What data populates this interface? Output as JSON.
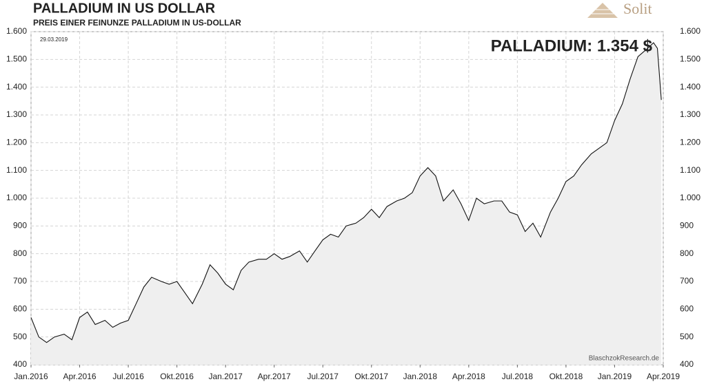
{
  "chart_data": {
    "type": "area",
    "title": "PALLADIUM  IN  US DOLLAR",
    "subtitle": "PREIS EINER FEINUNZE PALLADIUM IN US-DOLLAR",
    "date_note": "29.03.2019",
    "annotation": "PALLADIUM: 1.354 $",
    "source": "BlaschzokResearch.de",
    "logo": "Solit",
    "color": "#111111",
    "fill": "#efefef",
    "grid": true,
    "x": [
      2016.0,
      2016.04,
      2016.08,
      2016.12,
      2016.17,
      2016.21,
      2016.25,
      2016.29,
      2016.33,
      2016.38,
      2016.42,
      2016.46,
      2016.5,
      2016.54,
      2016.58,
      2016.62,
      2016.67,
      2016.71,
      2016.75,
      2016.79,
      2016.83,
      2016.88,
      2016.92,
      2016.96,
      2017.0,
      2017.04,
      2017.08,
      2017.12,
      2017.17,
      2017.21,
      2017.25,
      2017.29,
      2017.33,
      2017.38,
      2017.42,
      2017.46,
      2017.5,
      2017.54,
      2017.58,
      2017.62,
      2017.67,
      2017.71,
      2017.75,
      2017.79,
      2017.83,
      2017.88,
      2017.92,
      2017.96,
      2018.0,
      2018.04,
      2018.08,
      2018.12,
      2018.17,
      2018.21,
      2018.25,
      2018.29,
      2018.33,
      2018.38,
      2018.42,
      2018.46,
      2018.5,
      2018.54,
      2018.58,
      2018.62,
      2018.67,
      2018.71,
      2018.75,
      2018.79,
      2018.83,
      2018.88,
      2018.92,
      2018.96,
      2019.0,
      2019.04,
      2019.08,
      2019.12,
      2019.17,
      2019.2,
      2019.22,
      2019.24
    ],
    "values": [
      570,
      500,
      480,
      500,
      510,
      490,
      570,
      590,
      545,
      560,
      535,
      550,
      560,
      620,
      680,
      715,
      700,
      690,
      700,
      660,
      620,
      690,
      760,
      730,
      690,
      670,
      740,
      770,
      780,
      780,
      800,
      780,
      790,
      810,
      770,
      810,
      850,
      870,
      860,
      900,
      910,
      930,
      960,
      930,
      970,
      990,
      1000,
      1020,
      1080,
      1110,
      1080,
      990,
      1030,
      980,
      920,
      1000,
      980,
      990,
      990,
      950,
      940,
      880,
      910,
      860,
      950,
      1000,
      1060,
      1080,
      1120,
      1160,
      1180,
      1200,
      1280,
      1340,
      1430,
      1510,
      1540,
      1560,
      1540,
      1354
    ],
    "xlim": [
      2016.0,
      2019.25
    ],
    "xticks": [
      {
        "value": 2016.0,
        "label": "Jan.2016"
      },
      {
        "value": 2016.25,
        "label": "Apr.2016"
      },
      {
        "value": 2016.5,
        "label": "Jul.2016"
      },
      {
        "value": 2016.75,
        "label": "Okt.2016"
      },
      {
        "value": 2017.0,
        "label": "Jan.2017"
      },
      {
        "value": 2017.25,
        "label": "Apr.2017"
      },
      {
        "value": 2017.5,
        "label": "Jul.2017"
      },
      {
        "value": 2017.75,
        "label": "Okt.2017"
      },
      {
        "value": 2018.0,
        "label": "Jan.2018"
      },
      {
        "value": 2018.25,
        "label": "Apr.2018"
      },
      {
        "value": 2018.5,
        "label": "Jul.2018"
      },
      {
        "value": 2018.75,
        "label": "Okt.2018"
      },
      {
        "value": 2019.0,
        "label": "Jan.2019"
      },
      {
        "value": 2019.25,
        "label": "Apr.2019"
      }
    ],
    "ylim": [
      400,
      1600
    ],
    "yticks": [
      400,
      500,
      600,
      700,
      800,
      900,
      {
        "value": 1000,
        "label": "1.000"
      },
      {
        "value": 1100,
        "label": "1.100"
      },
      {
        "value": 1200,
        "label": "1.200"
      },
      {
        "value": 1300,
        "label": "1.300"
      },
      {
        "value": 1400,
        "label": "1.400"
      },
      {
        "value": 1500,
        "label": "1.500"
      },
      {
        "value": 1600,
        "label": "1.600"
      }
    ]
  }
}
